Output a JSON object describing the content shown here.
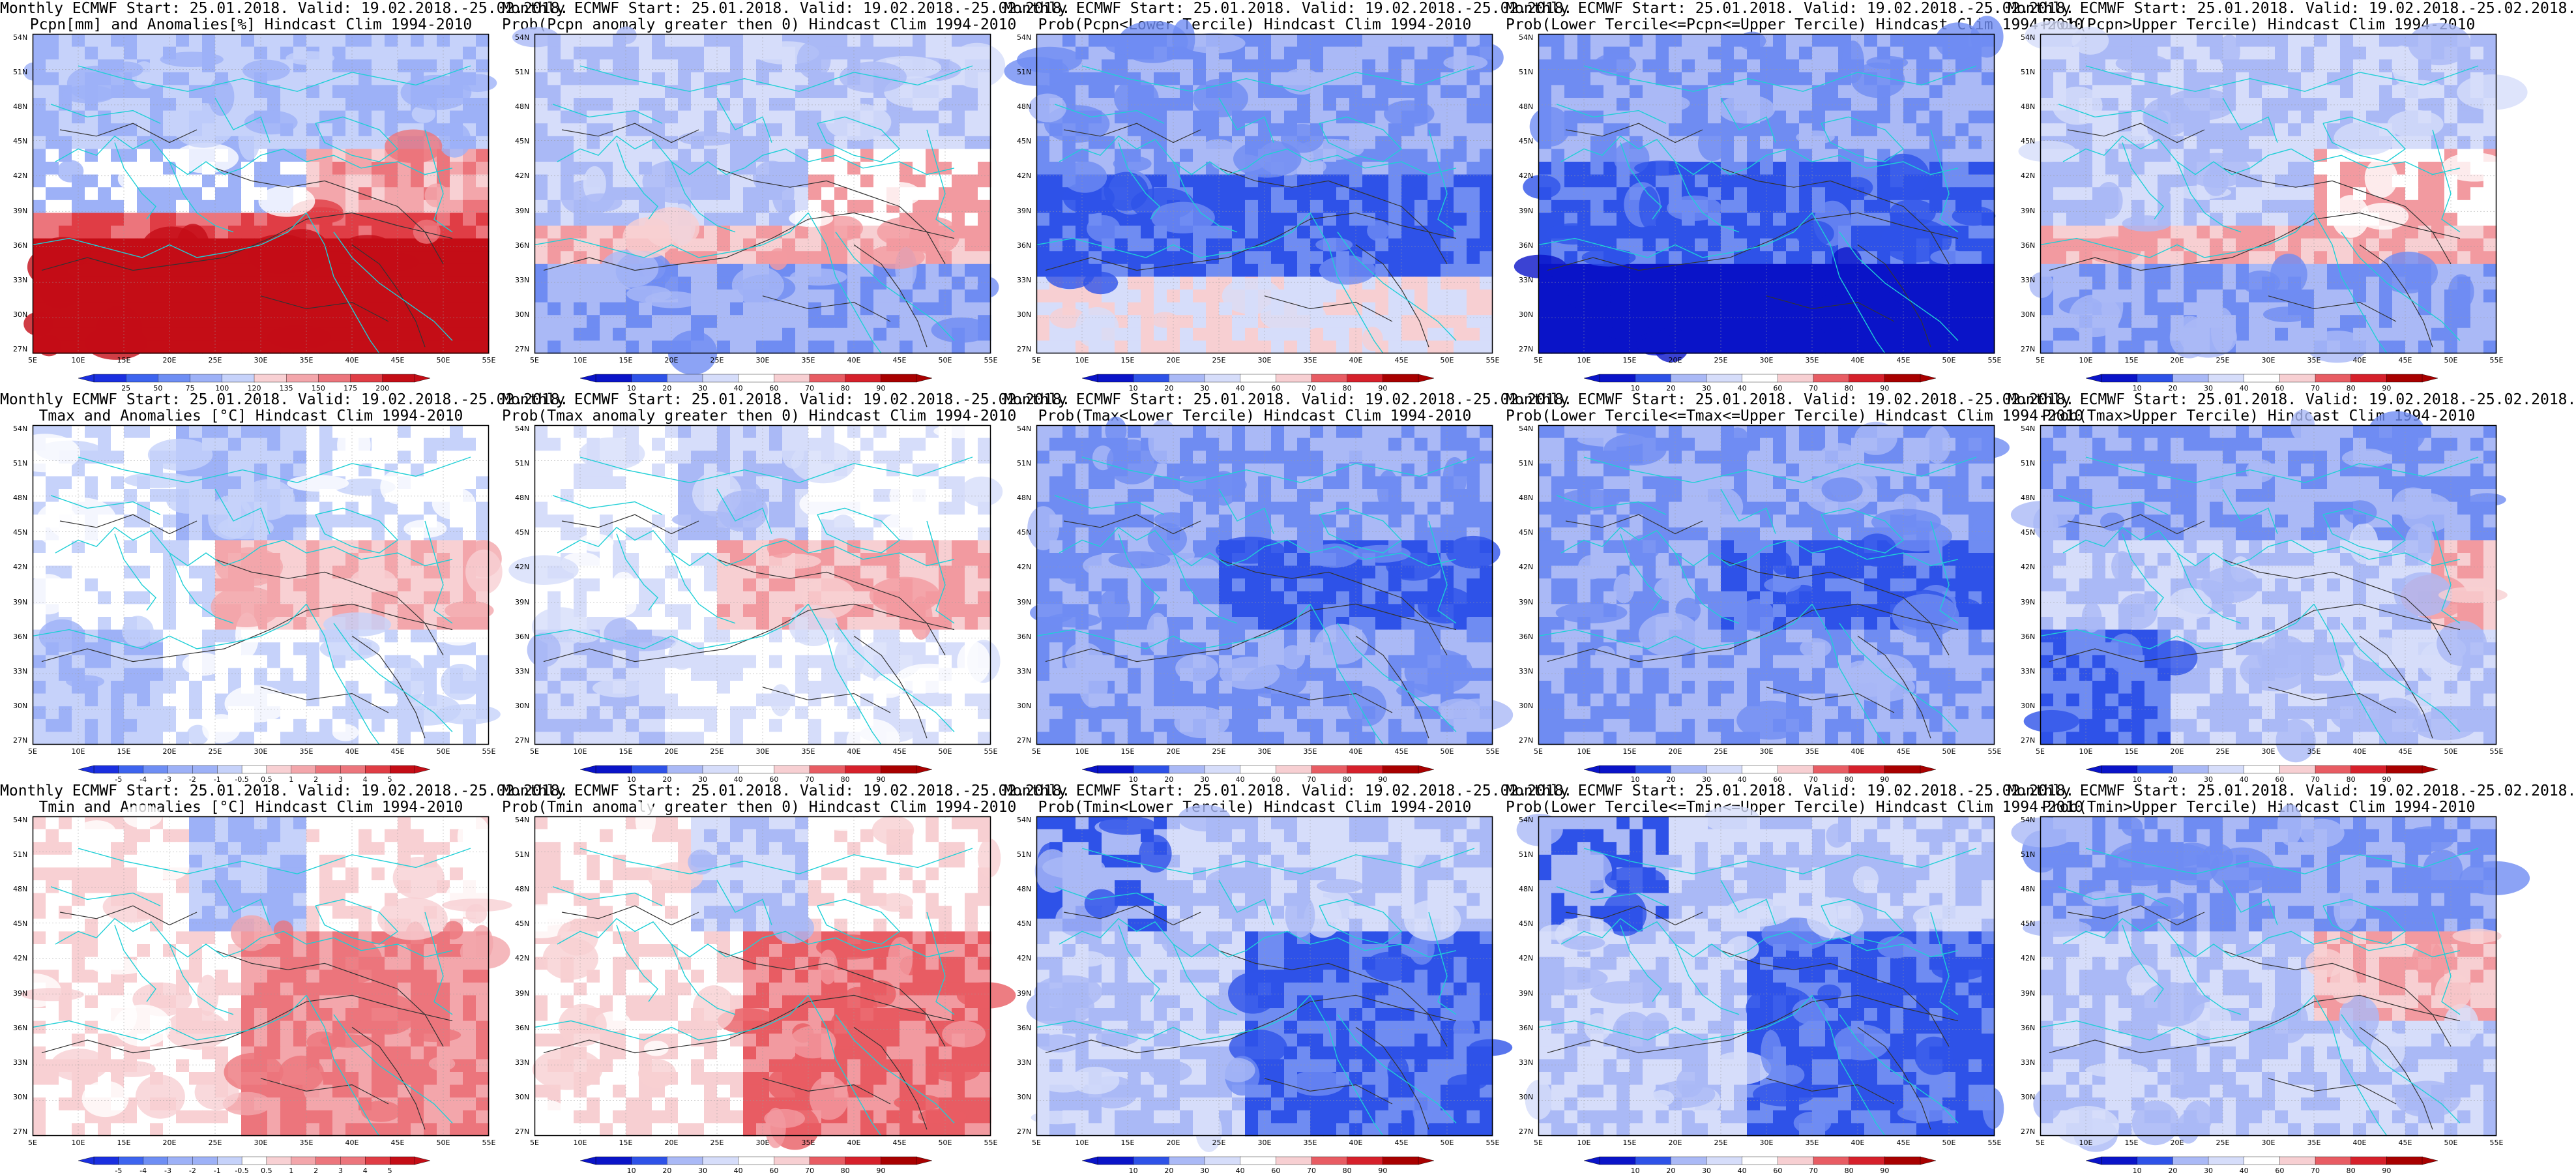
{
  "axes": {
    "lat_labels": [
      "54N",
      "51N",
      "48N",
      "45N",
      "42N",
      "39N",
      "36N",
      "33N",
      "30N",
      "27N"
    ],
    "lon_labels": [
      "5E",
      "10E",
      "15E",
      "20E",
      "25E",
      "30E",
      "35E",
      "40E",
      "45E",
      "50E",
      "55E"
    ]
  },
  "colors": {
    "coast": "#1fcfd6",
    "contour": "#333333",
    "prob_scale": [
      "#0a14c8",
      "#2e52e8",
      "#6f8cf2",
      "#aab9f6",
      "#d6ddfa",
      "#ffffff",
      "#f7cfd2",
      "#f29aa0",
      "#e85c63",
      "#d6202b",
      "#a80000"
    ],
    "anom_scale": [
      "#1a2fe0",
      "#3d64ef",
      "#6e8ef4",
      "#9db1f7",
      "#c6d2fa",
      "#ffffff",
      "#f8d0d3",
      "#f3a6ab",
      "#ec757c",
      "#e03d45",
      "#c40d16"
    ]
  },
  "colorbars": {
    "pcpn_anom": {
      "labels": [
        "25",
        "50",
        "75",
        "100",
        "120",
        "135",
        "150",
        "175",
        "200"
      ]
    },
    "prob": {
      "labels": [
        "10",
        "20",
        "30",
        "40",
        "60",
        "70",
        "80",
        "90"
      ]
    },
    "temp_anom": {
      "labels": [
        "-5",
        "-4",
        "-3",
        "-2",
        "-1",
        "-0.5",
        "0.5",
        "1",
        "2",
        "3",
        "4",
        "5"
      ]
    }
  },
  "panels": [
    {
      "title1": "Monthly ECMWF Start: 25.01.2018. Valid: 19.02.2018.-25.02.2018.",
      "title2": "Pcpn[mm] and Anomalies[%] Hindcast Clim 1994-2010",
      "scale": "pcpn_anom",
      "pattern": "pcpn_anom"
    },
    {
      "title1": "Monthly ECMWF Start: 25.01.2018. Valid: 19.02.2018.-25.02.2018.",
      "title2": "Prob(Pcpn anomaly greater then 0) Hindcast Clim 1994-2010",
      "scale": "prob",
      "pattern": "pcpn_pos"
    },
    {
      "title1": "Monthly ECMWF Start: 25.01.2018. Valid: 19.02.2018.-25.02.2018.",
      "title2": "Prob(Pcpn<Lower Tercile) Hindcast Clim 1994-2010",
      "scale": "prob",
      "pattern": "pcpn_lower"
    },
    {
      "title1": "Monthly ECMWF Start: 25.01.2018. Valid: 19.02.2018.-25.02.2018.",
      "title2": "Prob(Lower Tercile<=Pcpn<=Upper Tercile) Hindcast Clim 1994-2010",
      "scale": "prob",
      "pattern": "pcpn_middle"
    },
    {
      "title1": "Monthly ECMWF Start: 25.01.2018. Valid: 19.02.2018.-25.02.2018.",
      "title2": "Prob(Pcpn>Upper Tercile) Hindcast Clim 1994-2010",
      "scale": "prob",
      "pattern": "pcpn_upper"
    },
    {
      "title1": "Monthly ECMWF Start: 25.01.2018. Valid: 19.02.2018.-25.02.2018.",
      "title2": "Tmax and Anomalies [°C] Hindcast Clim 1994-2010",
      "scale": "temp_anom",
      "pattern": "tmax_anom"
    },
    {
      "title1": "Monthly ECMWF Start: 25.01.2018. Valid: 19.02.2018.-25.02.2018.",
      "title2": "Prob(Tmax anomaly greater then 0) Hindcast Clim 1994-2010",
      "scale": "prob",
      "pattern": "tmax_pos"
    },
    {
      "title1": "Monthly ECMWF Start: 25.01.2018. Valid: 19.02.2018.-25.02.2018.",
      "title2": "Prob(Tmax<Lower Tercile) Hindcast Clim 1994-2010",
      "scale": "prob",
      "pattern": "tmax_lower"
    },
    {
      "title1": "Monthly ECMWF Start: 25.01.2018. Valid: 19.02.2018.-25.02.2018.",
      "title2": "Prob(Lower Tercile<=Tmax<=Upper Tercile) Hindcast Clim 1994-2010",
      "scale": "prob",
      "pattern": "tmax_middle"
    },
    {
      "title1": "Monthly ECMWF Start: 25.01.2018. Valid: 19.02.2018.-25.02.2018.",
      "title2": "Prob(Tmax>Upper Tercile) Hindcast Clim 1994-2010",
      "scale": "prob",
      "pattern": "tmax_upper"
    },
    {
      "title1": "Monthly ECMWF Start: 25.01.2018. Valid: 19.02.2018.-25.02.2018.",
      "title2": "Tmin and Anomalies [°C] Hindcast Clim 1994-2010",
      "scale": "temp_anom",
      "pattern": "tmin_anom"
    },
    {
      "title1": "Monthly ECMWF Start: 25.01.2018. Valid: 19.02.2018.-25.02.2018.",
      "title2": "Prob(Tmin anomaly greater then 0) Hindcast Clim 1994-2010",
      "scale": "prob",
      "pattern": "tmin_pos"
    },
    {
      "title1": "Monthly ECMWF Start: 25.01.2018. Valid: 19.02.2018.-25.02.2018.",
      "title2": "Prob(Tmin<Lower Tercile) Hindcast Clim 1994-2010",
      "scale": "prob",
      "pattern": "tmin_lower"
    },
    {
      "title1": "Monthly ECMWF Start: 25.01.2018. Valid: 19.02.2018.-25.02.2018.",
      "title2": "Prob(Lower Tercile<=Tmin<=Upper Tercile) Hindcast Clim 1994-2010",
      "scale": "prob",
      "pattern": "tmin_middle"
    },
    {
      "title1": "Monthly ECMWF Start: 25.01.2018. Valid: 19.02.2018.-25.02.2018.",
      "title2": "Prob(Tmin>Upper Tercile) Hindcast Clim 1994-2010",
      "scale": "prob",
      "pattern": "tmin_upper"
    }
  ]
}
